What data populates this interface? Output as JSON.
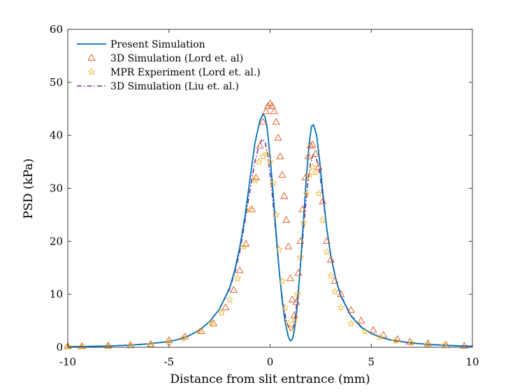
{
  "chart_data": {
    "type": "line",
    "title": "",
    "xlabel": "Distance from slit entrance (mm)",
    "ylabel": "PSD (kPa)",
    "xlim": [
      -10,
      10
    ],
    "ylim": [
      0,
      60
    ],
    "xticks": [
      -10,
      -5,
      0,
      5,
      10
    ],
    "yticks": [
      0,
      10,
      20,
      30,
      40,
      50,
      60
    ],
    "legend_position": "top-left",
    "series": [
      {
        "name": "Present Simulation",
        "style": "solid",
        "color": "#0072BD",
        "x": [
          -10,
          -9,
          -8,
          -7,
          -6,
          -5,
          -4.5,
          -4,
          -3.5,
          -3,
          -2.5,
          -2,
          -1.75,
          -1.5,
          -1.25,
          -1,
          -0.75,
          -0.5,
          -0.35,
          -0.25,
          -0.15,
          0,
          0.15,
          0.3,
          0.45,
          0.6,
          0.75,
          0.9,
          1.0,
          1.1,
          1.2,
          1.35,
          1.5,
          1.65,
          1.8,
          1.95,
          2.05,
          2.15,
          2.3,
          2.45,
          2.6,
          2.8,
          3.0,
          3.25,
          3.5,
          4,
          4.5,
          5,
          5.5,
          6,
          7,
          8,
          9,
          10
        ],
        "y": [
          0.1,
          0.15,
          0.25,
          0.4,
          0.65,
          1.1,
          1.5,
          2.2,
          3.2,
          4.8,
          7.2,
          11.2,
          14.5,
          18.8,
          24.5,
          31.5,
          38.5,
          42.8,
          44.0,
          43.5,
          41.5,
          36.0,
          29.0,
          21.5,
          14.5,
          8.8,
          4.6,
          2.0,
          1.2,
          1.5,
          3.2,
          8.0,
          15.5,
          24.0,
          32.5,
          39.0,
          41.7,
          42.0,
          40.0,
          35.2,
          29.5,
          22.5,
          17.3,
          12.8,
          9.6,
          5.9,
          3.8,
          2.6,
          1.85,
          1.35,
          0.8,
          0.5,
          0.32,
          0.2
        ]
      },
      {
        "name": "3D Simulation (Lord et. al)",
        "style": "triangle-markers",
        "color": "#D95319",
        "x": [
          -10,
          -9.3,
          -8,
          -6.9,
          -5.9,
          -5,
          -4.2,
          -3.4,
          -2.8,
          -2.2,
          -1.8,
          -1.5,
          -1.2,
          -0.9,
          -0.7,
          -0.5,
          -0.35,
          -0.2,
          -0.1,
          0,
          0.1,
          0.2,
          0.3,
          0.4,
          0.5,
          0.6,
          0.7,
          0.8,
          0.9,
          1.0,
          1.1,
          1.2,
          1.3,
          1.4,
          1.5,
          1.6,
          1.75,
          1.9,
          2.0,
          2.1,
          2.25,
          2.4,
          2.6,
          2.8,
          3.0,
          3.2,
          3.5,
          4.0,
          4.5,
          5.1,
          5.6,
          6.3,
          6.9,
          7.8,
          8.7,
          9.6
        ],
        "y": [
          0.2,
          0.2,
          0.3,
          0.4,
          0.6,
          1.3,
          2.0,
          3.0,
          4.5,
          7.5,
          10.8,
          14.5,
          19.5,
          26.0,
          32.0,
          38.0,
          42.5,
          44.5,
          45.5,
          46.0,
          45.5,
          44.5,
          42.5,
          39.5,
          36.0,
          32.5,
          28.5,
          24.0,
          19.0,
          13.0,
          9.0,
          6.0,
          8.5,
          14.0,
          20.0,
          26.0,
          32.0,
          36.0,
          38.0,
          38.2,
          36.5,
          34.0,
          27.5,
          20.0,
          16.5,
          12.5,
          10.0,
          7.0,
          5.0,
          3.2,
          2.3,
          1.5,
          1.0,
          0.7,
          0.4,
          0.25
        ]
      },
      {
        "name": "MPR Experiment (Lord et. al.)",
        "style": "star-markers",
        "color": "#EDB120",
        "x": [
          -10,
          -9.3,
          -8,
          -6.9,
          -5.9,
          -5,
          -4.3,
          -3.5,
          -2.9,
          -2.4,
          -2.0,
          -1.6,
          -1.3,
          -1.0,
          -0.75,
          -0.55,
          -0.35,
          -0.15,
          0,
          0.15,
          0.3,
          0.45,
          0.6,
          0.75,
          0.9,
          1.05,
          1.2,
          1.35,
          1.5,
          1.65,
          1.8,
          1.95,
          2.1,
          2.25,
          2.4,
          2.6,
          2.8,
          3.0,
          3.2,
          3.5,
          4.0,
          4.7,
          5.4,
          6.2,
          7.0,
          7.8,
          8.6
        ],
        "y": [
          0.1,
          0.1,
          0.2,
          0.3,
          0.5,
          0.9,
          1.7,
          3.0,
          4.5,
          6.5,
          9.0,
          13.0,
          19.0,
          26.0,
          31.5,
          35.0,
          36.0,
          36.5,
          35.0,
          31.0,
          25.0,
          18.5,
          12.5,
          7.5,
          4.5,
          3.5,
          5.0,
          10.0,
          17.0,
          23.5,
          29.0,
          32.5,
          34.0,
          33.0,
          29.0,
          24.0,
          18.0,
          13.5,
          10.5,
          7.5,
          4.5,
          3.0,
          1.9,
          1.2,
          0.8,
          0.5,
          0.35
        ]
      },
      {
        "name": "3D Simulation (Liu et. al.)",
        "style": "dash-dot",
        "color": "#7E2F8E",
        "x": [
          -10,
          -9,
          -8,
          -7,
          -6,
          -5,
          -4.5,
          -4,
          -3.5,
          -3,
          -2.5,
          -2,
          -1.75,
          -1.5,
          -1.25,
          -1,
          -0.75,
          -0.55,
          -0.4,
          -0.25,
          -0.1,
          0.05,
          0.2,
          0.35,
          0.5,
          0.65,
          0.8,
          0.95,
          1.05,
          1.15,
          1.25,
          1.4,
          1.55,
          1.7,
          1.85,
          2.0,
          2.15,
          2.3,
          2.45,
          2.6,
          2.8,
          3.0,
          3.25,
          3.5,
          4,
          4.5,
          5,
          5.5,
          6,
          7,
          8,
          9,
          10
        ],
        "y": [
          0.1,
          0.15,
          0.25,
          0.4,
          0.65,
          1.1,
          1.5,
          2.2,
          3.2,
          4.8,
          7.2,
          11.0,
          14.0,
          18.0,
          23.5,
          29.5,
          35.0,
          38.0,
          39.3,
          38.8,
          36.0,
          31.0,
          25.0,
          18.5,
          12.5,
          8.0,
          5.0,
          3.5,
          3.2,
          3.8,
          6.0,
          11.0,
          17.5,
          24.5,
          30.5,
          34.8,
          36.5,
          35.5,
          33.0,
          28.5,
          22.5,
          17.5,
          13.0,
          9.8,
          6.0,
          3.9,
          2.6,
          1.85,
          1.35,
          0.8,
          0.5,
          0.32,
          0.2
        ]
      }
    ]
  }
}
